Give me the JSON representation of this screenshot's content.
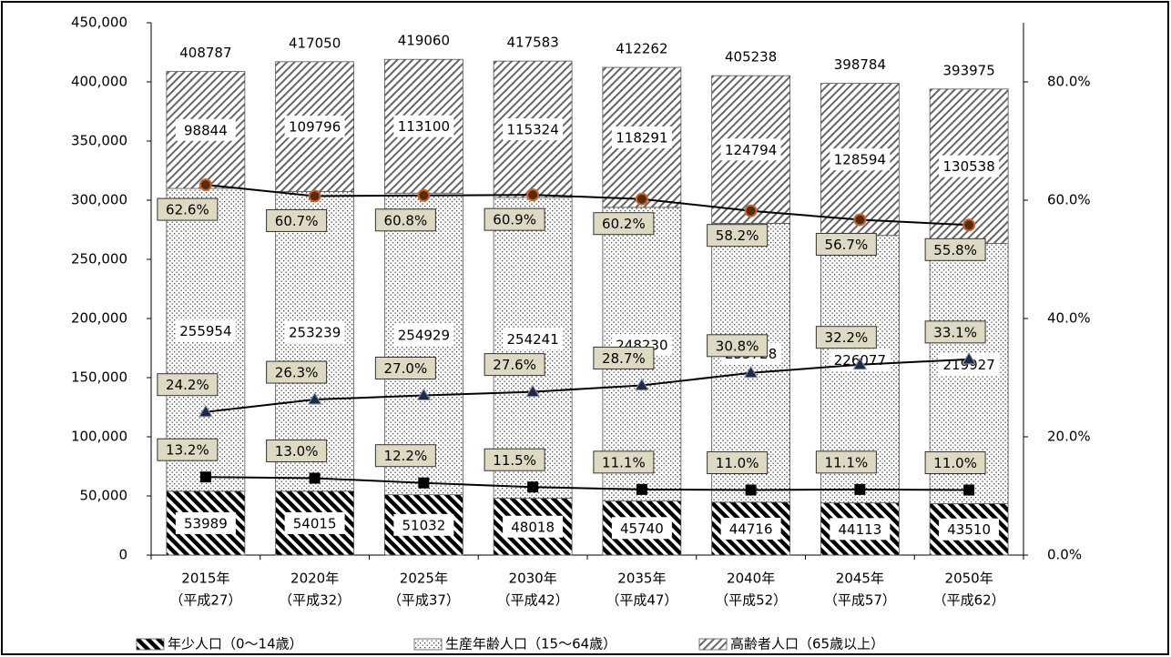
{
  "chart_data": {
    "type": "bar",
    "stacked": true,
    "categories": [
      [
        "2015年",
        "（平成27）"
      ],
      [
        "2020年",
        "（平成32）"
      ],
      [
        "2025年",
        "（平成37）"
      ],
      [
        "2030年",
        "（平成42）"
      ],
      [
        "2035年",
        "（平成47）"
      ],
      [
        "2040年",
        "（平成52）"
      ],
      [
        "2045年",
        "（平成57）"
      ],
      [
        "2050年",
        "（平成62）"
      ]
    ],
    "series": [
      {
        "name": "年少人口（0～14歳）",
        "color": "#000000",
        "pattern": "stripes",
        "values": [
          53989,
          54015,
          51032,
          48018,
          45740,
          44716,
          44113,
          43510
        ]
      },
      {
        "name": "生産年齢人口（15～64歳）",
        "color": "#000000",
        "pattern": "dots",
        "values": [
          255954,
          253239,
          254929,
          254241,
          248230,
          235728,
          226077,
          219927
        ]
      },
      {
        "name": "高齢者人口（65歳以上）",
        "color": "#000000",
        "pattern": "hatch",
        "values": [
          98844,
          109796,
          113100,
          115324,
          118291,
          124794,
          128594,
          130538
        ]
      }
    ],
    "totals": [
      408787,
      417050,
      419060,
      417583,
      412262,
      405238,
      398784,
      393975
    ],
    "lines": [
      {
        "axis": "y2",
        "marker": "circle",
        "color": "#5a2a10",
        "values": [
          62.6,
          60.7,
          60.8,
          60.9,
          60.2,
          58.2,
          56.7,
          55.8
        ],
        "value_labels": [
          "62.6%",
          "60.7%",
          "60.8%",
          "60.9%",
          "60.2%",
          "58.2%",
          "56.7%",
          "55.8%"
        ]
      },
      {
        "axis": "y2",
        "marker": "triangle",
        "color": "#1f2a44",
        "values": [
          24.2,
          26.3,
          27.0,
          27.6,
          28.7,
          30.8,
          32.2,
          33.1
        ],
        "value_labels": [
          "24.2%",
          "26.3%",
          "27.0%",
          "27.6%",
          "28.7%",
          "30.8%",
          "32.2%",
          "33.1%"
        ]
      },
      {
        "axis": "y2",
        "marker": "square",
        "color": "#000000",
        "values": [
          13.2,
          13.0,
          12.2,
          11.5,
          11.1,
          11.0,
          11.1,
          11.0
        ],
        "value_labels": [
          "13.2%",
          "13.0%",
          "12.2%",
          "11.5%",
          "11.1%",
          "11.0%",
          "11.1%",
          "11.0%"
        ]
      }
    ],
    "ylim": [
      0,
      450000
    ],
    "yticks": [
      0,
      {
        "value": 50000,
        "label": "50,000"
      },
      {
        "value": 100000,
        "label": "100,000"
      },
      {
        "value": 150000,
        "label": "150,000"
      },
      {
        "value": 200000,
        "label": "200,000"
      },
      {
        "value": 250000,
        "label": "250,000"
      },
      {
        "value": 300000,
        "label": "300,000"
      },
      {
        "value": 350000,
        "label": "350,000"
      },
      {
        "value": 400000,
        "label": "400,000"
      },
      {
        "value": 450000,
        "label": "450,000"
      }
    ],
    "y2lim": [
      0,
      90
    ],
    "y2ticks": [
      {
        "value": 0,
        "label": "0.0%"
      },
      {
        "value": 20,
        "label": "20.0%"
      },
      {
        "value": 40,
        "label": "40.0%"
      },
      {
        "value": 60,
        "label": "60.0%"
      },
      {
        "value": 80,
        "label": "80.0%"
      }
    ],
    "grid": false,
    "legend": "bottom"
  }
}
